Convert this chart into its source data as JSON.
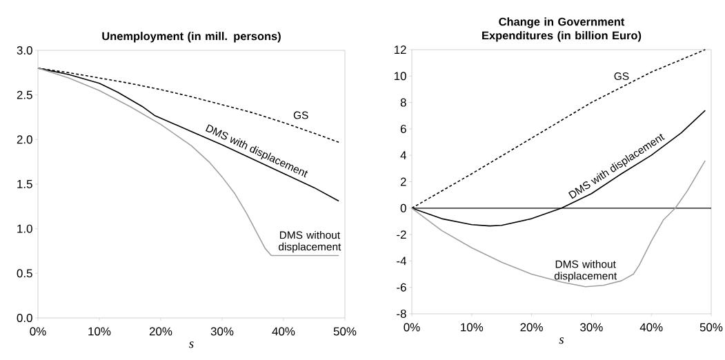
{
  "chart_data": [
    {
      "type": "line",
      "title": "Unemployment (in mill. persons)",
      "xlabel": "s",
      "xlim": [
        0,
        50
      ],
      "xticks": [
        {
          "value": 0,
          "label": "0%"
        },
        {
          "value": 10,
          "label": "10%"
        },
        {
          "value": 20,
          "label": "20%"
        },
        {
          "value": 30,
          "label": "30%"
        },
        {
          "value": 40,
          "label": "40%"
        },
        {
          "value": 50,
          "label": "50%"
        }
      ],
      "ylim": [
        0,
        3
      ],
      "yticks": [
        {
          "value": 0,
          "label": "0.0"
        },
        {
          "value": 0.5,
          "label": "0.5"
        },
        {
          "value": 1,
          "label": "1.0"
        },
        {
          "value": 1.5,
          "label": "1.5"
        },
        {
          "value": 2,
          "label": "2.0"
        },
        {
          "value": 2.5,
          "label": "2.5"
        },
        {
          "value": 3,
          "label": "3.0"
        }
      ],
      "series": [
        {
          "name": "GS",
          "color": "#000000",
          "line_style": "dashed",
          "x": [
            0,
            5,
            10,
            15,
            20,
            25,
            30,
            35,
            40,
            45,
            49
          ],
          "values": [
            2.8,
            2.75,
            2.69,
            2.63,
            2.56,
            2.48,
            2.39,
            2.3,
            2.19,
            2.07,
            1.97
          ]
        },
        {
          "name": "DMS with displacement",
          "color": "#000000",
          "line_style": "solid",
          "x": [
            0,
            5,
            10,
            13,
            15,
            17,
            19,
            22,
            25,
            30,
            35,
            40,
            45,
            49
          ],
          "values": [
            2.8,
            2.73,
            2.63,
            2.53,
            2.45,
            2.37,
            2.27,
            2.18,
            2.09,
            1.94,
            1.78,
            1.62,
            1.46,
            1.31
          ]
        },
        {
          "name": "DMS without displacement",
          "color": "#a0a0a0",
          "line_style": "solid",
          "x": [
            0,
            5,
            10,
            15,
            20,
            25,
            28,
            30,
            32,
            34,
            36,
            37,
            38,
            49
          ],
          "values": [
            2.8,
            2.69,
            2.55,
            2.37,
            2.17,
            1.93,
            1.74,
            1.58,
            1.4,
            1.17,
            0.91,
            0.78,
            0.7,
            0.7
          ]
        }
      ]
    },
    {
      "type": "line",
      "title": "Change in Government Expenditures (in billion Euro)",
      "xlabel": "s",
      "xlim": [
        0,
        50
      ],
      "xticks": [
        {
          "value": 0,
          "label": "0%"
        },
        {
          "value": 10,
          "label": "10%"
        },
        {
          "value": 20,
          "label": "20%"
        },
        {
          "value": 30,
          "label": "30%"
        },
        {
          "value": 40,
          "label": "40%"
        },
        {
          "value": 50,
          "label": "50%"
        }
      ],
      "ylim": [
        -8,
        12
      ],
      "yticks": [
        -8,
        -6,
        -4,
        -2,
        0,
        2,
        4,
        6,
        8,
        10,
        12
      ],
      "ref_lines": [
        {
          "axis": "y",
          "value": 0,
          "color": "#000000"
        }
      ],
      "series": [
        {
          "name": "GS",
          "color": "#000000",
          "line_style": "dashed",
          "x": [
            0,
            10,
            20,
            30,
            40,
            49
          ],
          "values": [
            0,
            2.6,
            5.3,
            8.0,
            10.3,
            12.0
          ]
        },
        {
          "name": "DMS with displacement",
          "color": "#000000",
          "line_style": "solid",
          "x": [
            0,
            5,
            10,
            13,
            15,
            20,
            25,
            30,
            35,
            40,
            45,
            49
          ],
          "values": [
            0,
            -0.8,
            -1.25,
            -1.35,
            -1.3,
            -0.8,
            0,
            1.1,
            2.6,
            4.0,
            5.7,
            7.4
          ]
        },
        {
          "name": "DMS without displacement",
          "color": "#a0a0a0",
          "line_style": "solid",
          "x": [
            0,
            5,
            10,
            15,
            20,
            25,
            29,
            32,
            35,
            37,
            38,
            40,
            42,
            44,
            46,
            49
          ],
          "values": [
            0,
            -1.7,
            -3.0,
            -4.1,
            -5.0,
            -5.6,
            -5.95,
            -5.85,
            -5.5,
            -5.0,
            -4.3,
            -2.5,
            -0.9,
            0.0,
            1.3,
            3.6
          ]
        }
      ]
    }
  ]
}
